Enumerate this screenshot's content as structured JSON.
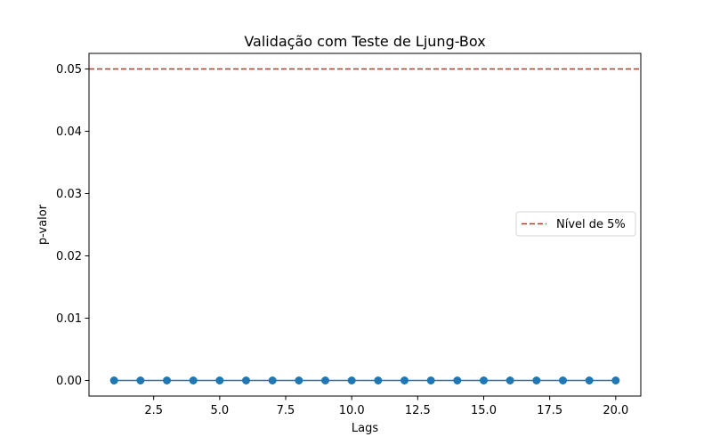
{
  "chart_data": {
    "type": "line",
    "title": "Validação com Teste de Ljung-Box",
    "xlabel": "Lags",
    "ylabel": "p-valor",
    "xlim": [
      0.05,
      20.95
    ],
    "ylim": [
      -0.0025,
      0.0525
    ],
    "x_ticks": [
      2.5,
      5.0,
      7.5,
      10.0,
      12.5,
      15.0,
      17.5,
      20.0
    ],
    "x_tick_labels": [
      "2.5",
      "5.0",
      "7.5",
      "10.0",
      "12.5",
      "15.0",
      "17.5",
      "20.0"
    ],
    "y_ticks": [
      0.0,
      0.01,
      0.02,
      0.03,
      0.04,
      0.05
    ],
    "y_tick_labels": [
      "0.00",
      "0.01",
      "0.02",
      "0.03",
      "0.04",
      "0.05"
    ],
    "grid": false,
    "legend_position": "center-right",
    "series": [
      {
        "x": [
          1,
          2,
          3,
          4,
          5,
          6,
          7,
          8,
          9,
          10,
          11,
          12,
          13,
          14,
          15,
          16,
          17,
          18,
          19,
          20
        ],
        "values": [
          0,
          0,
          0,
          0,
          0,
          0,
          0,
          0,
          0,
          0,
          0,
          0,
          0,
          0,
          0,
          0,
          0,
          0,
          0,
          0
        ],
        "color": "#1f77b4",
        "marker": "circle"
      }
    ],
    "reference_lines": [
      {
        "name": "Nível de 5%",
        "orientation": "horizontal",
        "y": 0.05,
        "color": "#d62728",
        "style": "dashed"
      }
    ]
  }
}
